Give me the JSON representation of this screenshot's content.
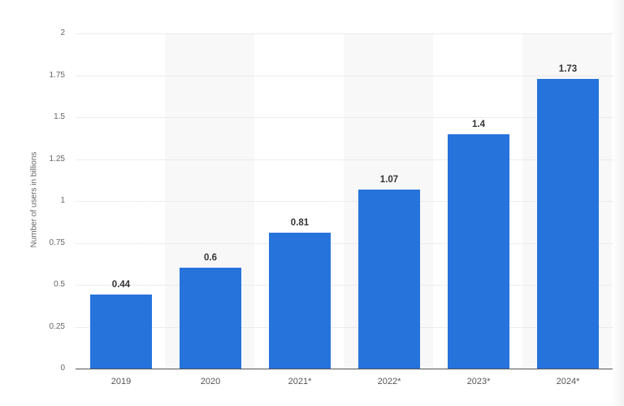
{
  "chart_data": {
    "type": "bar",
    "title": "",
    "xlabel": "",
    "ylabel": "Number of users in billions",
    "categories": [
      "2019",
      "2020",
      "2021*",
      "2022*",
      "2023*",
      "2024*"
    ],
    "values": [
      0.44,
      0.6,
      0.81,
      1.07,
      1.4,
      1.73
    ],
    "value_labels": [
      "0.44",
      "0.6",
      "0.81",
      "1.07",
      "1.4",
      "1.73"
    ],
    "ylim": [
      0,
      2
    ],
    "yticks": [
      "0",
      "0.25",
      "0.5",
      "0.75",
      "1",
      "1.25",
      "1.5",
      "1.75",
      "2"
    ],
    "grid": true,
    "legend": null,
    "bar_color": "#2673dc"
  }
}
